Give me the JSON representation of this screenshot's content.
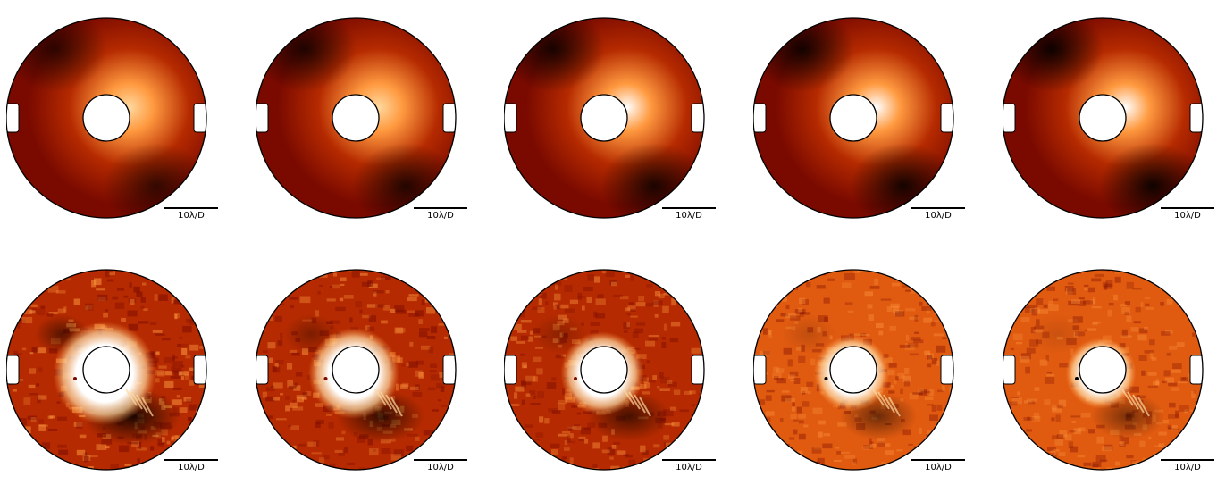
{
  "figure": {
    "scale_label": "10λ/D",
    "colors": {
      "background": "#ffffff",
      "outline": "#000000",
      "colormap": [
        "#000000",
        "#3a0000",
        "#7a0a00",
        "#b52a00",
        "#e05a10",
        "#ff9a40",
        "#ffd9a0",
        "#ffffff"
      ]
    },
    "rows": [
      {
        "name": "top-row",
        "panels": [
          {
            "name": "panel-top-1",
            "style": "smooth",
            "glow": 0.55
          },
          {
            "name": "panel-top-2",
            "style": "smooth",
            "glow": 0.75
          },
          {
            "name": "panel-top-3",
            "style": "smooth",
            "glow": 0.85
          },
          {
            "name": "panel-top-4",
            "style": "smooth",
            "glow": 0.92
          },
          {
            "name": "panel-top-5",
            "style": "smooth",
            "glow": 1.0
          }
        ]
      },
      {
        "name": "bottom-row",
        "panels": [
          {
            "name": "panel-bottom-1",
            "style": "noisy",
            "glow": 1.0
          },
          {
            "name": "panel-bottom-2",
            "style": "noisy",
            "glow": 0.75
          },
          {
            "name": "panel-bottom-3",
            "style": "noisy",
            "glow": 0.6
          },
          {
            "name": "panel-bottom-4",
            "style": "noisy",
            "glow": 0.45
          },
          {
            "name": "panel-bottom-5",
            "style": "noisy",
            "glow": 0.35
          }
        ]
      }
    ]
  }
}
